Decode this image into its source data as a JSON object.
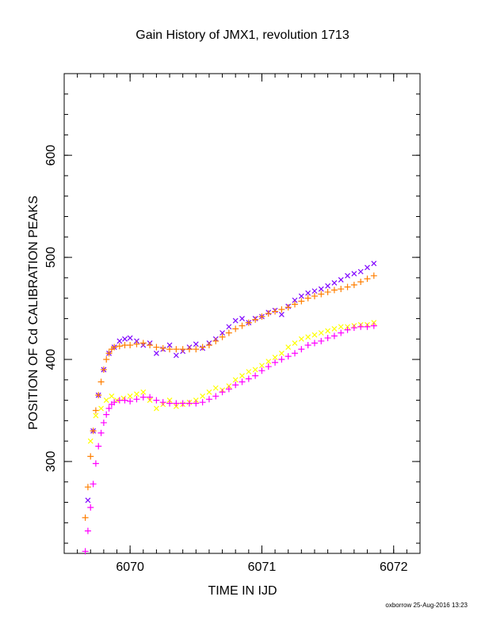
{
  "chart_data": {
    "type": "scatter",
    "title": "Gain History of JMX1, revolution 1713",
    "xlabel": "TIME IN IJD",
    "ylabel": "POSITION OF Cd CALIBRATION PEAKS",
    "xlim": [
      6069.5,
      6072.2
    ],
    "ylim": [
      210,
      680
    ],
    "xticks": [
      6070,
      6071,
      6072
    ],
    "yticks": [
      300,
      400,
      500,
      600
    ],
    "grid": false,
    "legend": "none",
    "series": [
      {
        "marker": "x",
        "color": "#7f00ff",
        "x": [
          6069.68,
          6069.72,
          6069.76,
          6069.8,
          6069.84,
          6069.88,
          6069.92,
          6069.96,
          6070.0,
          6070.05,
          6070.1,
          6070.15,
          6070.2,
          6070.25,
          6070.3,
          6070.35,
          6070.4,
          6070.45,
          6070.5,
          6070.55,
          6070.6,
          6070.65,
          6070.7,
          6070.75,
          6070.8,
          6070.85,
          6070.9,
          6070.95,
          6071.0,
          6071.05,
          6071.1,
          6071.15,
          6071.2,
          6071.25,
          6071.3,
          6071.35,
          6071.4,
          6071.45,
          6071.5,
          6071.55,
          6071.6,
          6071.65,
          6071.7,
          6071.75,
          6071.8,
          6071.85
        ],
        "y": [
          262,
          330,
          365,
          390,
          406,
          412,
          418,
          420,
          421,
          418,
          414,
          416,
          406,
          410,
          414,
          404,
          408,
          412,
          415,
          411,
          416,
          420,
          426,
          432,
          438,
          440,
          436,
          440,
          442,
          446,
          448,
          444,
          452,
          458,
          462,
          465,
          467,
          469,
          472,
          475,
          478,
          482,
          484,
          486,
          490,
          494
        ]
      },
      {
        "marker": "+",
        "color": "#ff7f00",
        "x": [
          6069.66,
          6069.68,
          6069.7,
          6069.72,
          6069.74,
          6069.76,
          6069.78,
          6069.8,
          6069.82,
          6069.84,
          6069.86,
          6069.88,
          6069.92,
          6069.96,
          6070.0,
          6070.05,
          6070.1,
          6070.15,
          6070.2,
          6070.25,
          6070.3,
          6070.35,
          6070.4,
          6070.45,
          6070.5,
          6070.55,
          6070.6,
          6070.65,
          6070.7,
          6070.75,
          6070.8,
          6070.85,
          6070.9,
          6070.95,
          6071.0,
          6071.05,
          6071.1,
          6071.15,
          6071.2,
          6071.25,
          6071.3,
          6071.35,
          6071.4,
          6071.45,
          6071.5,
          6071.55,
          6071.6,
          6071.65,
          6071.7,
          6071.75,
          6071.8,
          6071.85
        ],
        "y": [
          245,
          275,
          305,
          330,
          350,
          365,
          378,
          390,
          400,
          406,
          410,
          412,
          413,
          414,
          414,
          415,
          416,
          414,
          412,
          411,
          410,
          410,
          410,
          410,
          410,
          412,
          414,
          418,
          422,
          426,
          430,
          433,
          436,
          439,
          442,
          445,
          447,
          449,
          451,
          454,
          457,
          460,
          462,
          464,
          466,
          468,
          469,
          471,
          473,
          476,
          479,
          482
        ]
      },
      {
        "marker": "x",
        "color": "#ffff00",
        "x": [
          6069.7,
          6069.74,
          6069.78,
          6069.82,
          6069.86,
          6069.9,
          6069.95,
          6070.0,
          6070.05,
          6070.1,
          6070.15,
          6070.2,
          6070.25,
          6070.3,
          6070.35,
          6070.4,
          6070.45,
          6070.5,
          6070.55,
          6070.6,
          6070.65,
          6070.7,
          6070.75,
          6070.8,
          6070.85,
          6070.9,
          6070.95,
          6071.0,
          6071.05,
          6071.1,
          6071.15,
          6071.2,
          6071.25,
          6071.3,
          6071.35,
          6071.4,
          6071.45,
          6071.5,
          6071.55,
          6071.6,
          6071.65,
          6071.7,
          6071.75,
          6071.8,
          6071.85
        ],
        "y": [
          320,
          345,
          352,
          360,
          364,
          360,
          362,
          364,
          366,
          368,
          360,
          352,
          356,
          360,
          354,
          356,
          358,
          360,
          364,
          368,
          372,
          370,
          374,
          380,
          384,
          388,
          390,
          394,
          398,
          402,
          406,
          412,
          416,
          420,
          422,
          424,
          426,
          428,
          430,
          432,
          432,
          433,
          434,
          434,
          436
        ]
      },
      {
        "marker": "+",
        "color": "#ff00ff",
        "x": [
          6069.66,
          6069.68,
          6069.7,
          6069.72,
          6069.74,
          6069.76,
          6069.78,
          6069.8,
          6069.82,
          6069.84,
          6069.86,
          6069.88,
          6069.92,
          6069.96,
          6070.0,
          6070.05,
          6070.1,
          6070.15,
          6070.2,
          6070.25,
          6070.3,
          6070.35,
          6070.4,
          6070.45,
          6070.5,
          6070.55,
          6070.6,
          6070.65,
          6070.7,
          6070.75,
          6070.8,
          6070.85,
          6070.9,
          6070.95,
          6071.0,
          6071.05,
          6071.1,
          6071.15,
          6071.2,
          6071.25,
          6071.3,
          6071.35,
          6071.4,
          6071.45,
          6071.5,
          6071.55,
          6071.6,
          6071.65,
          6071.7,
          6071.75,
          6071.8,
          6071.85
        ],
        "y": [
          212,
          232,
          255,
          278,
          298,
          315,
          328,
          338,
          346,
          352,
          356,
          358,
          360,
          360,
          359,
          361,
          363,
          363,
          360,
          358,
          357,
          357,
          357,
          357,
          357,
          358,
          361,
          364,
          368,
          371,
          375,
          378,
          381,
          384,
          389,
          393,
          397,
          400,
          403,
          406,
          410,
          414,
          416,
          418,
          421,
          423,
          426,
          429,
          431,
          432,
          432,
          433
        ]
      }
    ]
  },
  "footer": "oxborrow 25-Aug-2016 13:23"
}
